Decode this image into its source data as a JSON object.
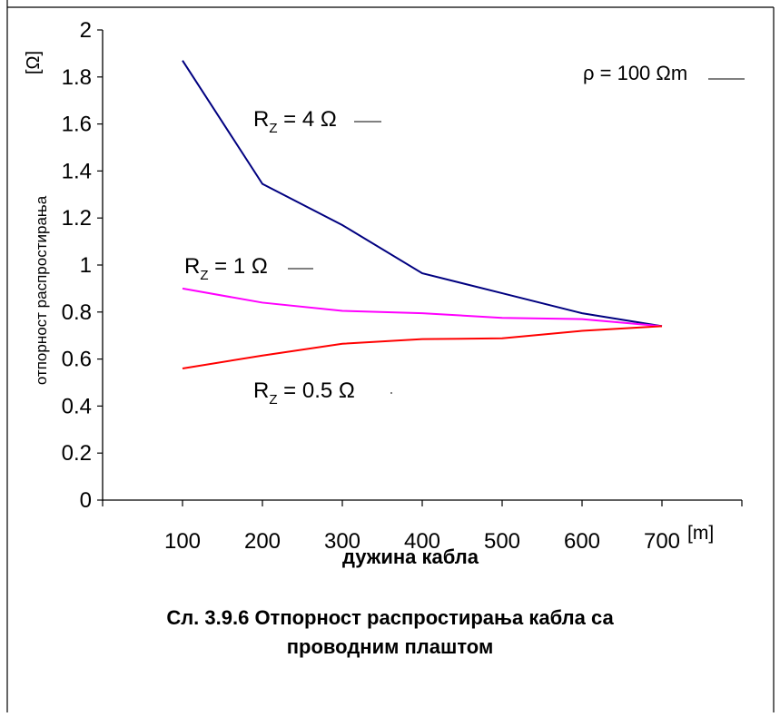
{
  "chart_data": {
    "type": "line",
    "x": [
      100,
      200,
      300,
      400,
      500,
      600,
      700
    ],
    "x_tick_labels": [
      "100",
      "200",
      "300",
      "400",
      "500",
      "600",
      "700"
    ],
    "y_tick_labels": [
      "0",
      "0.2",
      "0.4",
      "0.6",
      "0.8",
      "1",
      "1.2",
      "1.4",
      "1.6",
      "1.8",
      "2"
    ],
    "xlim": [
      0,
      800
    ],
    "ylim": [
      0,
      2
    ],
    "grid": false,
    "xlabel": "дужина кабла",
    "xunit": "[m]",
    "ylabel": "отпорност распростирања",
    "yunit": "[Ω]",
    "annotation_rho": "ρ = 100 Ωm",
    "series": [
      {
        "name_main": "R",
        "name_sub": "Z",
        "name_rest": " = 4 Ω",
        "color": "#000080",
        "values": [
          1.87,
          1.345,
          1.17,
          0.965,
          0.88,
          0.795,
          0.74
        ]
      },
      {
        "name_main": "R",
        "name_sub": "Z",
        "name_rest": " = 1 Ω",
        "color": "#ff00ff",
        "values": [
          0.9,
          0.84,
          0.805,
          0.795,
          0.775,
          0.77,
          0.74
        ]
      },
      {
        "name_main": "R",
        "name_sub": "Z",
        "name_rest": " = 0.5 Ω",
        "color": "#ff0000",
        "values": [
          0.56,
          0.615,
          0.665,
          0.685,
          0.688,
          0.72,
          0.74
        ]
      }
    ]
  },
  "caption": {
    "line1": "Сл. 3.9.6 Отпорност распростирања кабла са",
    "line2": "проводним плаштом"
  }
}
